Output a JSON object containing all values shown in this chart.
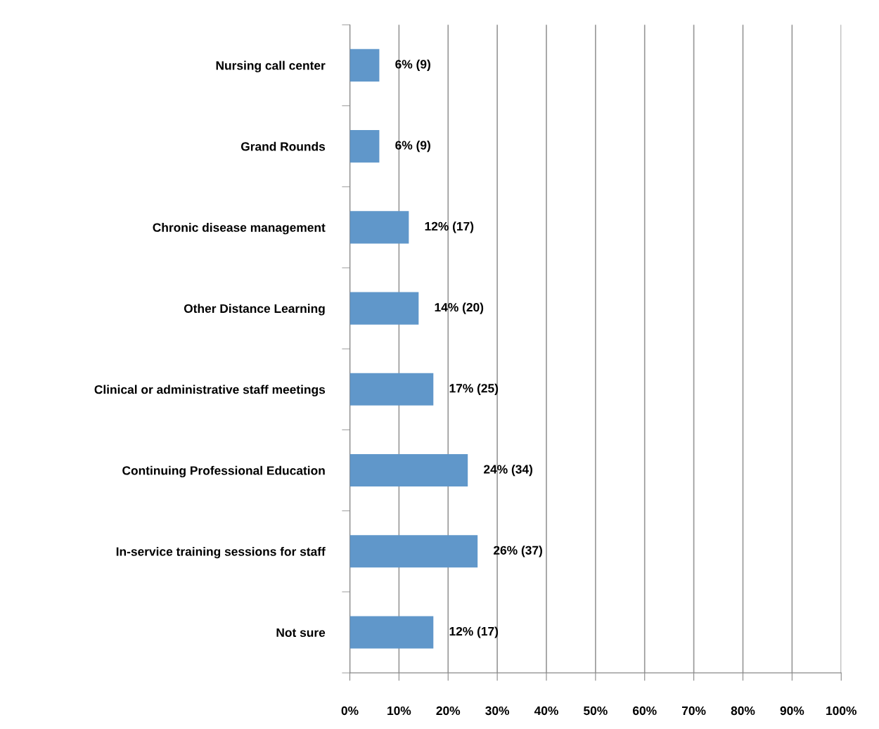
{
  "chart_data": {
    "type": "bar",
    "orientation": "horizontal",
    "categories": [
      "Nursing call center",
      "Grand Rounds",
      "Chronic disease management",
      "Other Distance Learning",
      "Clinical or administrative staff meetings",
      "Continuing Professional Education",
      "In-service training sessions for staff",
      "Not sure"
    ],
    "values": [
      6,
      6,
      12,
      14,
      17,
      24,
      26,
      17
    ],
    "value_labels": [
      "6% (9)",
      "6% (9)",
      "12% (17)",
      "14% (20)",
      "17% (25)",
      "24% (34)",
      "26% (37)",
      "12% (17)"
    ],
    "color": "#6097ca",
    "xlim": [
      0,
      100
    ],
    "xticks": [
      {
        "value": 0,
        "label": "0%"
      },
      {
        "value": 10,
        "label": "10%"
      },
      {
        "value": 20,
        "label": "20%"
      },
      {
        "value": 30,
        "label": "30%"
      },
      {
        "value": 40,
        "label": "40%"
      },
      {
        "value": 50,
        "label": "50%"
      },
      {
        "value": 60,
        "label": "60%"
      },
      {
        "value": 70,
        "label": "70%"
      },
      {
        "value": 80,
        "label": "80%"
      },
      {
        "value": 90,
        "label": "90%"
      },
      {
        "value": 100,
        "label": "100%"
      }
    ],
    "grid": "x",
    "legend": false
  }
}
